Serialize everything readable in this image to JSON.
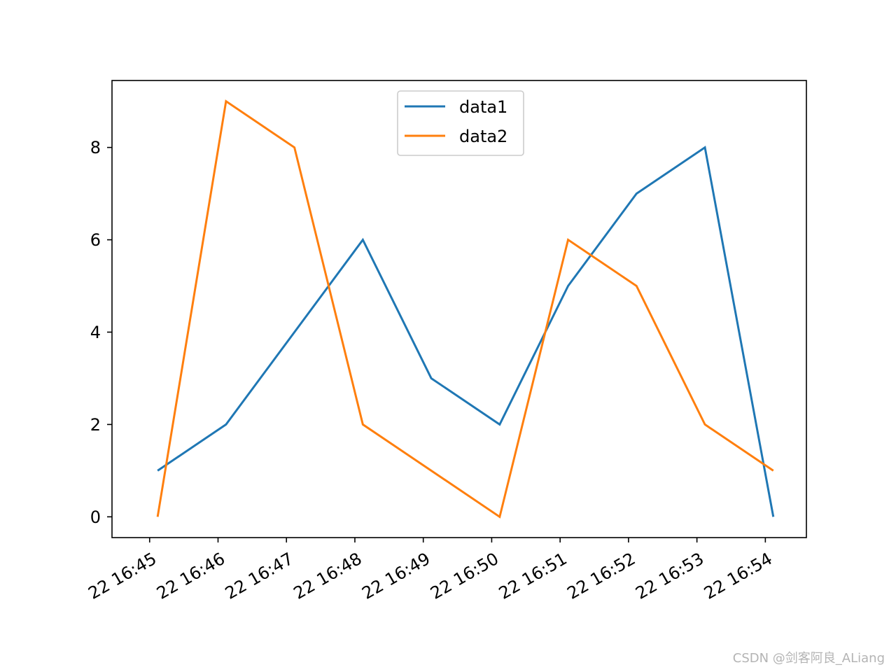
{
  "chart_data": {
    "type": "line",
    "x": [
      "22 16:45:07",
      "22 16:46:07",
      "22 16:47:07",
      "22 16:48:07",
      "22 16:49:07",
      "22 16:50:07",
      "22 16:51:07",
      "22 16:52:07",
      "22 16:53:07",
      "22 16:54:07"
    ],
    "series": [
      {
        "name": "data1",
        "color": "#1f77b4",
        "values": [
          1,
          2,
          4,
          6,
          3,
          2,
          5,
          7,
          8,
          0
        ]
      },
      {
        "name": "data2",
        "color": "#ff7f0e",
        "values": [
          0,
          9,
          8,
          2,
          1,
          0,
          6,
          5,
          2,
          1
        ]
      }
    ],
    "x_ticks": [
      "22 16:45",
      "22 16:46",
      "22 16:47",
      "22 16:48",
      "22 16:49",
      "22 16:50",
      "22 16:51",
      "22 16:52",
      "22 16:53",
      "22 16:54"
    ],
    "y_ticks": [
      "0",
      "2",
      "4",
      "6",
      "8"
    ],
    "ylim": [
      -0.45,
      9.45
    ],
    "xlim_minutes": [
      -0.55,
      9.6
    ],
    "grid": false,
    "legend_position": "upper-center"
  },
  "watermark": "CSDN @剑客阿良_ALiang"
}
